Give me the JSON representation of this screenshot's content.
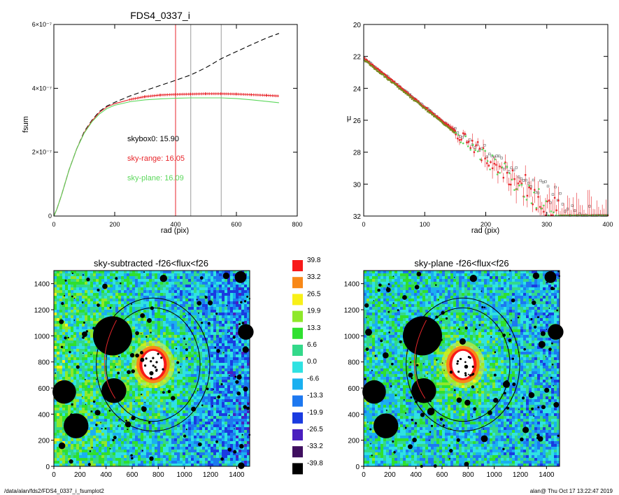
{
  "colors": {
    "black": "#000000",
    "red": "#e8262b",
    "green": "#5cd85c",
    "grey": "#9a9a9a",
    "sky_palette": [
      "#000000",
      "#3f0f5f",
      "#4a1fbf",
      "#1a3be0",
      "#1d78f0",
      "#1ab0f0",
      "#2fe2e2",
      "#33d98a",
      "#2fe02f",
      "#8ee82a",
      "#f8f018",
      "#f88818",
      "#f81a1a"
    ]
  },
  "chart_data": [
    {
      "type": "line",
      "title": "FDS4_0337_i",
      "xlabel": "rad (pix)",
      "ylabel": "fsum",
      "xlim": [
        0,
        800
      ],
      "ylim": [
        0,
        6e-07
      ],
      "xticks": [
        "0",
        "200",
        "400",
        "600",
        "800"
      ],
      "yticks": [
        {
          "v": 0,
          "label": "0"
        },
        {
          "v": 2e-07,
          "label": "2×10⁻⁷"
        },
        {
          "v": 4e-07,
          "label": "4×10⁻⁷"
        },
        {
          "v": 6e-07,
          "label": "6×10⁻⁷"
        }
      ],
      "annotations": [
        {
          "text": "skybox0: 15.90",
          "color": "black"
        },
        {
          "text": "sky-range: 16.05",
          "color": "red"
        },
        {
          "text": "sky-plane: 16.09",
          "color": "green"
        }
      ],
      "vlines": [
        {
          "x": 400,
          "color": "red"
        },
        {
          "x": 450,
          "color": "grey"
        },
        {
          "x": 550,
          "color": "grey"
        }
      ],
      "series": [
        {
          "color": "black",
          "style": "dashed",
          "x": [
            0,
            10,
            25,
            50,
            75,
            100,
            125,
            150,
            175,
            200,
            250,
            300,
            400,
            450,
            500,
            550,
            600,
            650,
            700,
            740
          ],
          "y": [
            0,
            2.2e-08,
            6.5e-08,
            1.45e-07,
            2.1e-07,
            2.65e-07,
            3e-07,
            3.28e-07,
            3.45e-07,
            3.56e-07,
            3.76e-07,
            3.93e-07,
            4.25e-07,
            4.42e-07,
            4.65e-07,
            4.93e-07,
            5.15e-07,
            5.37e-07,
            5.58e-07,
            5.72e-07
          ]
        },
        {
          "color": "red",
          "style": "solid",
          "x": [
            0,
            10,
            25,
            50,
            75,
            100,
            125,
            150,
            175,
            200,
            250,
            300,
            350,
            400,
            450,
            500,
            550,
            600,
            650,
            700,
            740
          ],
          "y": [
            0,
            2.2e-08,
            6.5e-08,
            1.45e-07,
            2.1e-07,
            2.62e-07,
            2.98e-07,
            3.25e-07,
            3.42e-07,
            3.52e-07,
            3.65e-07,
            3.74e-07,
            3.79e-07,
            3.81e-07,
            3.82e-07,
            3.83e-07,
            3.83e-07,
            3.82e-07,
            3.8e-07,
            3.78e-07,
            3.76e-07
          ]
        },
        {
          "color": "green",
          "style": "solid",
          "x": [
            0,
            10,
            25,
            50,
            75,
            100,
            125,
            150,
            175,
            200,
            250,
            300,
            350,
            400,
            450,
            500,
            550,
            600,
            650,
            700,
            740
          ],
          "y": [
            0,
            2.2e-08,
            6.5e-08,
            1.45e-07,
            2.1e-07,
            2.6e-07,
            2.95e-07,
            3.2e-07,
            3.37e-07,
            3.47e-07,
            3.58e-07,
            3.64e-07,
            3.67e-07,
            3.69e-07,
            3.7e-07,
            3.7e-07,
            3.7e-07,
            3.68e-07,
            3.64e-07,
            3.59e-07,
            3.55e-07
          ]
        }
      ]
    },
    {
      "type": "scatter",
      "title": "",
      "xlabel": "rad (pix)",
      "ylabel": "μ",
      "xlim": [
        0,
        400
      ],
      "ylim": [
        32,
        20
      ],
      "xticks": [
        "0",
        "100",
        "200",
        "300",
        "400"
      ],
      "yticks": [
        "20",
        "22",
        "24",
        "26",
        "28",
        "30",
        "32"
      ],
      "profile": {
        "mu0": 22.1,
        "slope": 0.0307,
        "r_max": 400
      }
    },
    {
      "type": "heatmap",
      "title": "sky-subtracted -f26<flux<f26",
      "xlim": [
        0,
        1500
      ],
      "ylim": [
        0,
        1500
      ],
      "xticks": [
        "0",
        "200",
        "400",
        "600",
        "800",
        "1000",
        "1200",
        "1400"
      ],
      "yticks": [
        "0",
        "200",
        "400",
        "600",
        "800",
        "1000",
        "1200",
        "1400"
      ]
    },
    {
      "type": "heatmap",
      "title": "sky-plane -f26<flux<f26",
      "xlim": [
        0,
        1500
      ],
      "ylim": [
        0,
        1500
      ],
      "xticks": [
        "0",
        "200",
        "400",
        "600",
        "800",
        "1000",
        "1200",
        "1400"
      ],
      "yticks": [
        "0",
        "200",
        "400",
        "600",
        "800",
        "1000",
        "1200",
        "1400"
      ]
    }
  ],
  "colorbar": {
    "labels": [
      "39.8",
      "33.2",
      "26.5",
      "19.9",
      "13.3",
      "6.6",
      "0.0",
      "-6.6",
      "-13.3",
      "-19.9",
      "-26.5",
      "-33.2",
      "-39.8"
    ]
  },
  "footer": {
    "left": "/data/alan/fds2/FDS4_0337_i_fsumplot2",
    "right": "alan@  Thu Oct 17 13:22:47 2019"
  }
}
